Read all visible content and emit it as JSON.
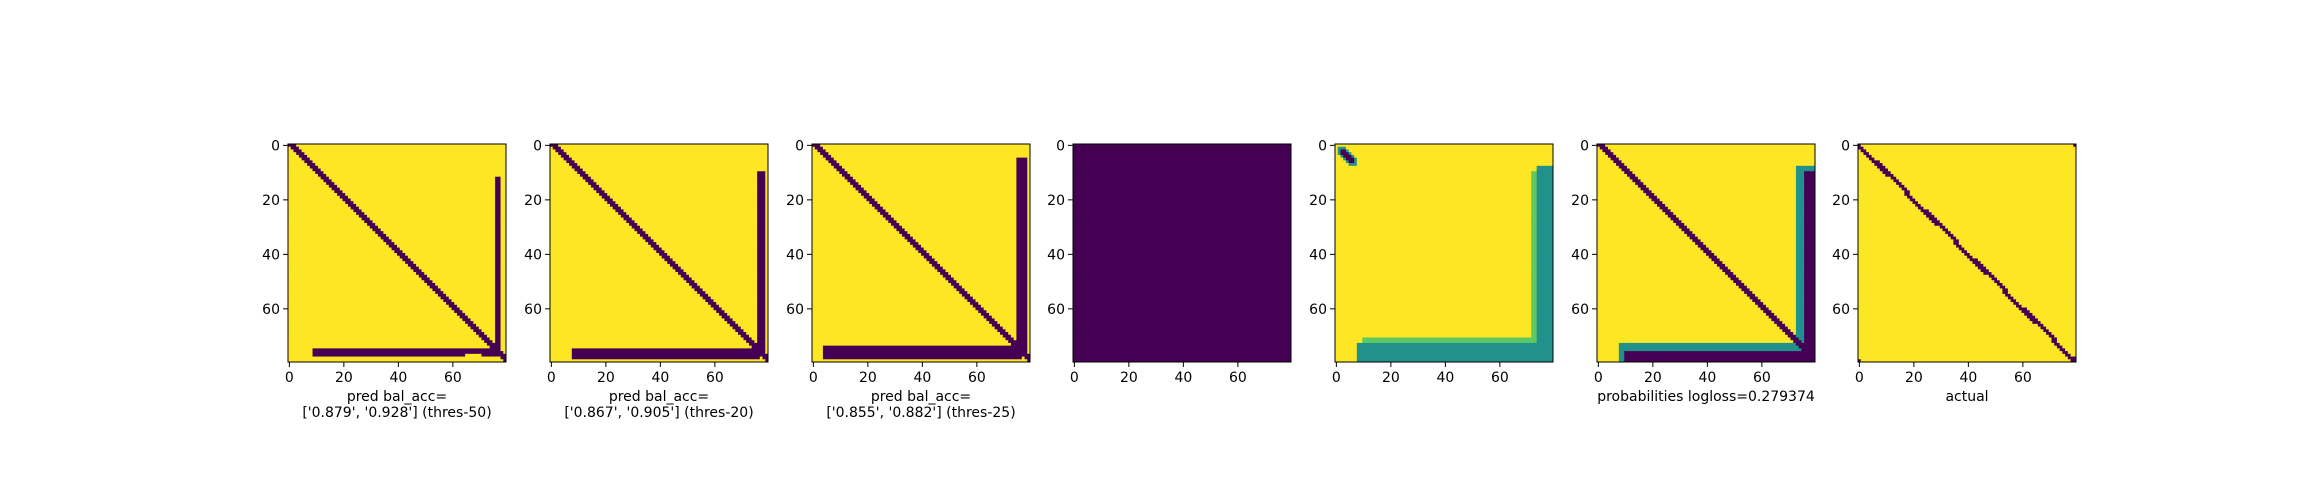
{
  "colors": {
    "viridis_low": "#440154",
    "viridis_mid": "#21918c",
    "viridis_midlight": "#5ec962",
    "viridis_high": "#fde725",
    "axis": "#000000",
    "background": "#ffffff"
  },
  "chart_data": [
    {
      "type": "heatmap",
      "matrix_size": 80,
      "pattern": "binary_pred",
      "vbar_x": [
        76,
        77
      ],
      "vbar_y": [
        12,
        77
      ],
      "hbar_x": [
        9,
        76
      ],
      "hbar_y": [
        75,
        77
      ],
      "hgap_x": [
        65,
        70
      ],
      "xticks": [
        "0",
        "20",
        "40",
        "60"
      ],
      "yticks": [
        "0",
        "20",
        "40",
        "60"
      ],
      "xlabel_lines": [
        "pred bal_acc=",
        "['0.879', '0.928'] (thres-50)"
      ]
    },
    {
      "type": "heatmap",
      "matrix_size": 80,
      "pattern": "binary_pred",
      "vbar_x": [
        76,
        78
      ],
      "vbar_y": [
        10,
        77
      ],
      "hbar_x": [
        8,
        76
      ],
      "hbar_y": [
        75,
        78
      ],
      "xticks": [
        "0",
        "20",
        "40",
        "60"
      ],
      "yticks": [
        "0",
        "20",
        "40",
        "60"
      ],
      "xlabel_lines": [
        "pred bal_acc=",
        "['0.867', '0.905'] (thres-20)"
      ]
    },
    {
      "type": "heatmap",
      "matrix_size": 80,
      "pattern": "binary_pred",
      "vbar_x": [
        75,
        78
      ],
      "vbar_y": [
        5,
        77
      ],
      "hbar_x": [
        4,
        76
      ],
      "hbar_y": [
        74,
        78
      ],
      "xticks": [
        "0",
        "20",
        "40",
        "60"
      ],
      "yticks": [
        "0",
        "20",
        "40",
        "60"
      ],
      "xlabel_lines": [
        "pred bal_acc=",
        "['0.855', '0.882'] (thres-25)"
      ]
    },
    {
      "type": "heatmap",
      "matrix_size": 80,
      "pattern": "solid_low",
      "xticks": [
        "0",
        "20",
        "40",
        "60"
      ],
      "yticks": [
        "0",
        "20",
        "40",
        "60"
      ],
      "xlabel_lines": []
    },
    {
      "type": "heatmap",
      "matrix_size": 80,
      "pattern": "probability_border",
      "xticks": [
        "0",
        "20",
        "40",
        "60"
      ],
      "yticks": [
        "0",
        "20",
        "40",
        "60"
      ],
      "xlabel_lines": []
    },
    {
      "type": "heatmap",
      "matrix_size": 80,
      "pattern": "probability_diag",
      "xticks": [
        "0",
        "20",
        "40",
        "60"
      ],
      "yticks": [
        "0",
        "20",
        "40",
        "60"
      ],
      "xlabel_lines": [
        "probabilities logloss=0.279374"
      ]
    },
    {
      "type": "heatmap",
      "matrix_size": 80,
      "pattern": "actual",
      "xticks": [
        "0",
        "20",
        "40",
        "60"
      ],
      "yticks": [
        "0",
        "20",
        "40",
        "60"
      ],
      "xlabel_lines": [
        "actual"
      ]
    }
  ]
}
